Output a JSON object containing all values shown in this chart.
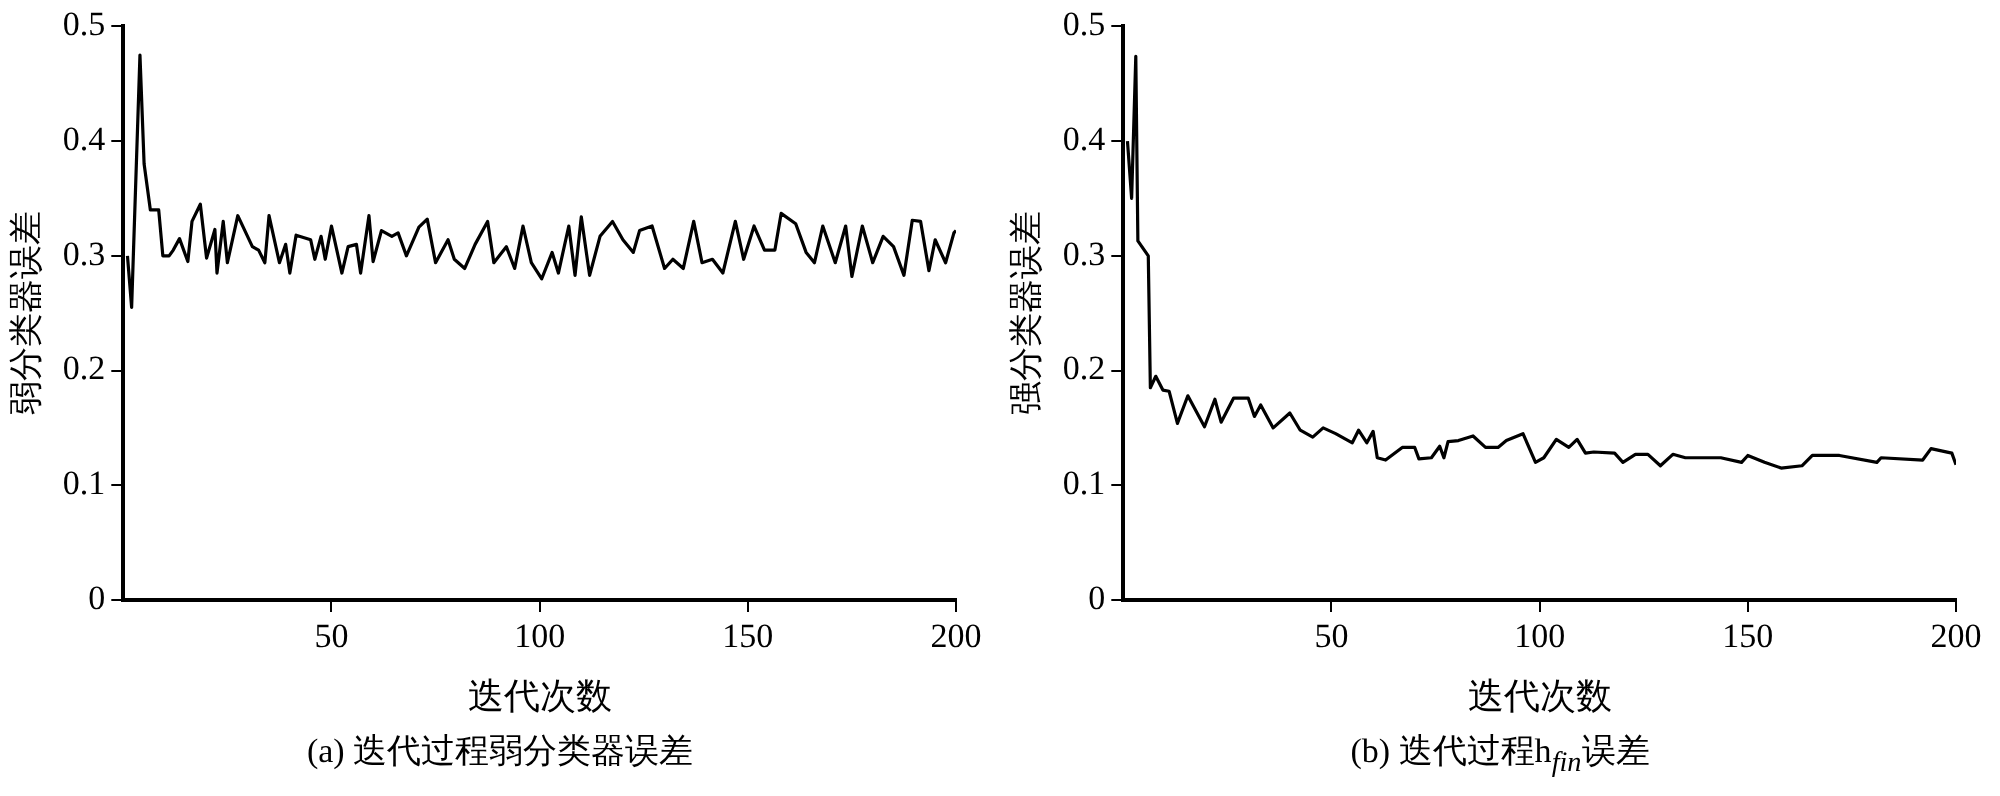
{
  "chart_data": [
    {
      "type": "line",
      "title": "(a) 迭代过程弱分类器误差",
      "xlabel": "迭代次数",
      "ylabel": "弱分类器误差",
      "xlim": [
        0,
        200
      ],
      "xticks": [
        50,
        100,
        150,
        200
      ],
      "ylim": [
        0,
        0.5
      ],
      "yticks": [
        0,
        0.1,
        0.2,
        0.3,
        0.4,
        0.5
      ],
      "grid": false,
      "legend": false,
      "marker": "none",
      "line_style": "solid",
      "series": [
        {
          "color": "#000000",
          "x": [
            1,
            2,
            4,
            5,
            6.5,
            8.5,
            9.5,
            11,
            12,
            13.5,
            15.5,
            16.5,
            18.5,
            20,
            22,
            22.5,
            24,
            25,
            27.5,
            31,
            32.5,
            34,
            35,
            37.5,
            39,
            40,
            41.5,
            45,
            46,
            47.5,
            48.5,
            50,
            52.5,
            54,
            56,
            57,
            59,
            60,
            62,
            64.5,
            66,
            68,
            71,
            73,
            75,
            78,
            79.5,
            82,
            84.5,
            87.5,
            89,
            92,
            94,
            96,
            98,
            100.5,
            103,
            104.5,
            107,
            108.5,
            110,
            112,
            114.5,
            117.5,
            120,
            122.5,
            124,
            127,
            130,
            132,
            134.5,
            137,
            139,
            141.5,
            144,
            147,
            149,
            151.5,
            154,
            156.5,
            158,
            161.5,
            164,
            166,
            168,
            171,
            173.5,
            175,
            177.5,
            180,
            182.5,
            185,
            187.5,
            189.5,
            191.5,
            193.5,
            195,
            197.5,
            199.5,
            200
          ],
          "values": [
            0.3,
            0.255,
            0.475,
            0.38,
            0.34,
            0.34,
            0.3,
            0.3,
            0.305,
            0.315,
            0.295,
            0.33,
            0.345,
            0.298,
            0.323,
            0.285,
            0.33,
            0.294,
            0.335,
            0.308,
            0.305,
            0.294,
            0.335,
            0.294,
            0.31,
            0.285,
            0.318,
            0.314,
            0.297,
            0.317,
            0.297,
            0.326,
            0.285,
            0.308,
            0.31,
            0.285,
            0.335,
            0.295,
            0.322,
            0.317,
            0.32,
            0.3,
            0.325,
            0.332,
            0.294,
            0.314,
            0.297,
            0.289,
            0.31,
            0.33,
            0.294,
            0.308,
            0.289,
            0.326,
            0.294,
            0.28,
            0.303,
            0.285,
            0.326,
            0.283,
            0.334,
            0.283,
            0.317,
            0.33,
            0.314,
            0.303,
            0.322,
            0.326,
            0.289,
            0.297,
            0.289,
            0.33,
            0.294,
            0.297,
            0.285,
            0.33,
            0.297,
            0.326,
            0.305,
            0.305,
            0.337,
            0.328,
            0.303,
            0.294,
            0.326,
            0.294,
            0.326,
            0.282,
            0.326,
            0.294,
            0.317,
            0.308,
            0.283,
            0.331,
            0.33,
            0.287,
            0.314,
            0.294,
            0.32,
            0.322
          ]
        }
      ]
    },
    {
      "type": "line",
      "title": "(b) 迭代过程h$_{fin}$误差",
      "xlabel": "迭代次数",
      "ylabel": "强分类器误差",
      "xlim": [
        0,
        200
      ],
      "xticks": [
        50,
        100,
        150,
        200
      ],
      "ylim": [
        0,
        0.5
      ],
      "yticks": [
        0,
        0.1,
        0.2,
        0.3,
        0.4,
        0.5
      ],
      "grid": false,
      "legend": false,
      "marker": "none",
      "line_style": "solid",
      "series": [
        {
          "color": "#000000",
          "x": [
            1,
            2,
            3,
            3.5,
            6,
            6.5,
            7.8,
            9.5,
            11,
            13,
            15.5,
            19.5,
            22,
            23.5,
            26.5,
            30,
            31.5,
            33,
            36,
            40,
            42.5,
            45.5,
            48,
            51,
            55,
            56.5,
            58.5,
            60,
            61,
            63,
            67,
            70,
            71,
            74,
            76,
            77,
            78,
            80.5,
            84,
            87,
            90,
            92,
            96,
            99,
            101,
            104,
            107,
            109,
            111,
            113,
            118,
            120,
            123,
            126,
            129,
            132,
            135,
            143.5,
            148.5,
            150,
            154,
            158,
            163,
            165.5,
            172,
            181,
            182,
            192,
            194,
            199,
            200
          ],
          "values": [
            0.4,
            0.35,
            0.474,
            0.313,
            0.3,
            0.185,
            0.195,
            0.183,
            0.182,
            0.154,
            0.178,
            0.151,
            0.175,
            0.155,
            0.176,
            0.176,
            0.16,
            0.17,
            0.15,
            0.163,
            0.148,
            0.142,
            0.15,
            0.145,
            0.137,
            0.148,
            0.137,
            0.147,
            0.124,
            0.122,
            0.133,
            0.133,
            0.123,
            0.124,
            0.134,
            0.124,
            0.138,
            0.139,
            0.143,
            0.133,
            0.133,
            0.139,
            0.145,
            0.12,
            0.124,
            0.14,
            0.133,
            0.14,
            0.128,
            0.129,
            0.128,
            0.12,
            0.127,
            0.127,
            0.117,
            0.127,
            0.124,
            0.124,
            0.12,
            0.126,
            0.12,
            0.115,
            0.117,
            0.126,
            0.126,
            0.12,
            0.124,
            0.122,
            0.132,
            0.128,
            0.118
          ]
        }
      ]
    }
  ]
}
